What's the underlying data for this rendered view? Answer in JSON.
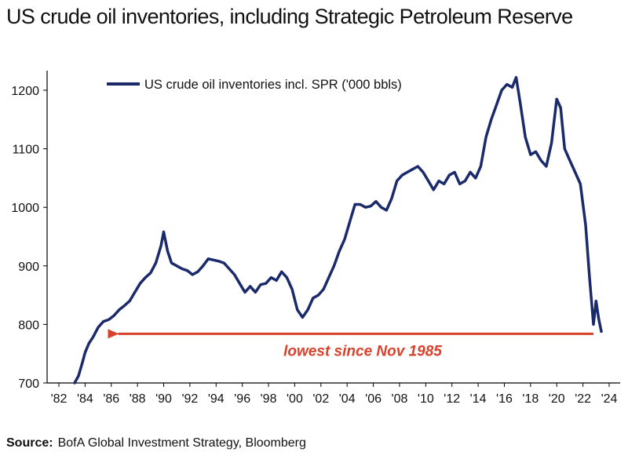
{
  "title": "US crude oil inventories, including Strategic Petroleum Reserve",
  "source": {
    "label": "Source:",
    "text": "BofA Global Investment Strategy, Bloomberg"
  },
  "colors": {
    "series": "#1b2a6b",
    "arrow": "#d9412b",
    "axis": "#000000"
  },
  "chart_data": {
    "type": "line",
    "title": "US crude oil inventories, including Strategic Petroleum Reserve",
    "xlabel": "",
    "ylabel": "",
    "xlim": [
      1982,
      2024.5
    ],
    "ylim": [
      700,
      1250
    ],
    "x_tick_labels": [
      "'82",
      "'84",
      "'86",
      "'88",
      "'90",
      "'92",
      "'94",
      "'96",
      "'98",
      "'00",
      "'02",
      "'04",
      "'06",
      "'08",
      "'10",
      "'12",
      "'14",
      "'16",
      "'18",
      "'20",
      "'22",
      "'24"
    ],
    "x_tick_values": [
      1982,
      1984,
      1986,
      1988,
      1990,
      1992,
      1994,
      1996,
      1998,
      2000,
      2002,
      2004,
      2006,
      2008,
      2010,
      2012,
      2014,
      2016,
      2018,
      2020,
      2022,
      2024
    ],
    "y_tick_values": [
      700,
      800,
      900,
      1000,
      1100,
      1200
    ],
    "legend_position": "top-left",
    "grid": false,
    "series": [
      {
        "name": "US crude oil inventories incl. SPR ('000 bbls)",
        "x": [
          1983.2,
          1983.5,
          1983.8,
          1984.0,
          1984.3,
          1984.6,
          1985.0,
          1985.4,
          1985.8,
          1986.2,
          1986.6,
          1987.0,
          1987.4,
          1987.8,
          1988.2,
          1988.6,
          1989.0,
          1989.4,
          1989.8,
          1990.0,
          1990.3,
          1990.6,
          1991.0,
          1991.4,
          1991.8,
          1992.2,
          1992.6,
          1993.0,
          1993.4,
          1993.8,
          1994.2,
          1994.6,
          1995.0,
          1995.4,
          1995.8,
          1996.2,
          1996.6,
          1997.0,
          1997.4,
          1997.8,
          1998.2,
          1998.6,
          1999.0,
          1999.4,
          1999.8,
          2000.2,
          2000.6,
          2001.0,
          2001.4,
          2001.8,
          2002.2,
          2002.6,
          2003.0,
          2003.4,
          2003.8,
          2004.2,
          2004.6,
          2005.0,
          2005.4,
          2005.8,
          2006.2,
          2006.6,
          2007.0,
          2007.4,
          2007.8,
          2008.2,
          2008.6,
          2009.0,
          2009.4,
          2009.8,
          2010.2,
          2010.6,
          2011.0,
          2011.4,
          2011.8,
          2012.2,
          2012.6,
          2013.0,
          2013.4,
          2013.8,
          2014.2,
          2014.6,
          2015.0,
          2015.4,
          2015.8,
          2016.2,
          2016.6,
          2016.9,
          2017.2,
          2017.6,
          2018.0,
          2018.4,
          2018.8,
          2019.2,
          2019.6,
          2020.0,
          2020.3,
          2020.6,
          2021.0,
          2021.4,
          2021.8,
          2022.2,
          2022.5,
          2022.8,
          2023.0,
          2023.2,
          2023.4
        ],
        "y": [
          700,
          712,
          735,
          752,
          768,
          778,
          795,
          805,
          808,
          815,
          825,
          832,
          840,
          855,
          870,
          880,
          888,
          905,
          935,
          958,
          925,
          905,
          900,
          895,
          892,
          885,
          890,
          900,
          912,
          910,
          908,
          905,
          895,
          885,
          870,
          855,
          865,
          855,
          868,
          870,
          880,
          875,
          890,
          880,
          860,
          825,
          812,
          825,
          845,
          850,
          860,
          880,
          900,
          925,
          945,
          975,
          1005,
          1005,
          1000,
          1002,
          1010,
          1000,
          995,
          1015,
          1045,
          1055,
          1060,
          1065,
          1070,
          1060,
          1045,
          1030,
          1045,
          1040,
          1055,
          1060,
          1040,
          1045,
          1060,
          1050,
          1070,
          1120,
          1150,
          1175,
          1200,
          1210,
          1205,
          1222,
          1180,
          1120,
          1090,
          1095,
          1080,
          1070,
          1110,
          1185,
          1170,
          1100,
          1080,
          1060,
          1040,
          970,
          880,
          800,
          840,
          810,
          788
        ]
      }
    ],
    "annotations": [
      {
        "text": "lowest since Nov 1985",
        "type": "arrow",
        "x_from": 2022.8,
        "x_to": 1985.8,
        "y": 788
      }
    ]
  }
}
